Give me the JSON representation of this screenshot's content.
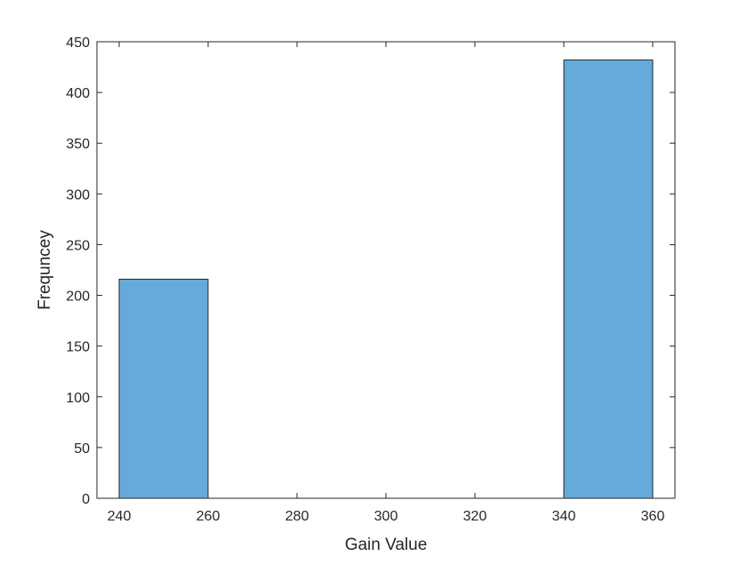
{
  "chart_data": {
    "type": "bar",
    "subtype": "histogram",
    "title": "",
    "xlabel": "Gain Value",
    "ylabel": "Frequncey",
    "xlim": [
      235,
      365
    ],
    "ylim": [
      0,
      450
    ],
    "xticks": [
      240,
      260,
      280,
      300,
      320,
      340,
      360
    ],
    "yticks": [
      0,
      50,
      100,
      150,
      200,
      250,
      300,
      350,
      400,
      450
    ],
    "grid": false,
    "legend": "none",
    "bins": [
      {
        "start": 240,
        "end": 260,
        "value": 216
      },
      {
        "start": 260,
        "end": 280,
        "value": 0
      },
      {
        "start": 280,
        "end": 300,
        "value": 0
      },
      {
        "start": 300,
        "end": 320,
        "value": 0
      },
      {
        "start": 320,
        "end": 340,
        "value": 0
      },
      {
        "start": 340,
        "end": 360,
        "value": 432
      }
    ],
    "colors": {
      "bar_fill": "#66AADB",
      "bar_edge": "#000000",
      "axis": "#262626"
    }
  }
}
